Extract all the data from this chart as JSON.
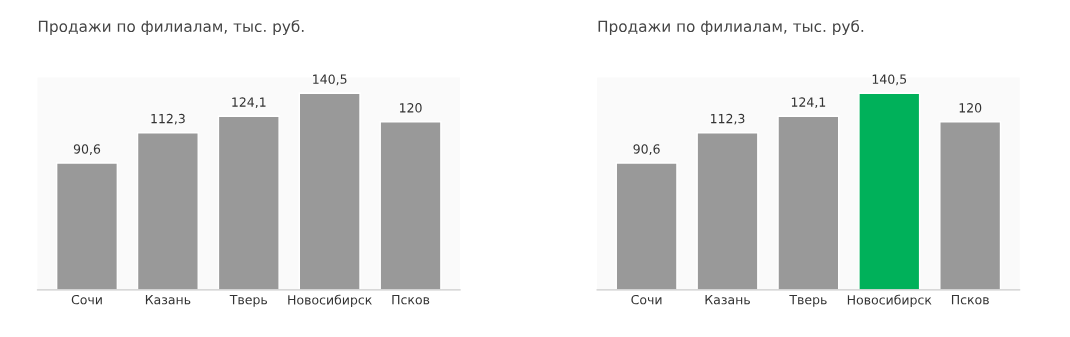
{
  "chart_data": [
    {
      "type": "bar",
      "title": "Продажи по филиалам, тыс. руб.",
      "categories": [
        "Сочи",
        "Казань",
        "Тверь",
        "Новосибирск",
        "Псков"
      ],
      "values": [
        90.6,
        112.3,
        124.1,
        140.5,
        120
      ],
      "value_labels": [
        "90,6",
        "112,3",
        "124,1",
        "140,5",
        "120"
      ],
      "colors": [
        "#999999",
        "#999999",
        "#999999",
        "#999999",
        "#999999"
      ],
      "grid": false,
      "legend": false
    },
    {
      "type": "bar",
      "title": "Продажи по филиалам, тыс. руб.",
      "categories": [
        "Сочи",
        "Казань",
        "Тверь",
        "Новосибирск",
        "Псков"
      ],
      "values": [
        90.6,
        112.3,
        124.1,
        140.5,
        120
      ],
      "value_labels": [
        "90,6",
        "112,3",
        "124,1",
        "140,5",
        "120"
      ],
      "colors": [
        "#999999",
        "#999999",
        "#999999",
        "#00b15a",
        "#999999"
      ],
      "grid": false,
      "legend": false
    }
  ]
}
